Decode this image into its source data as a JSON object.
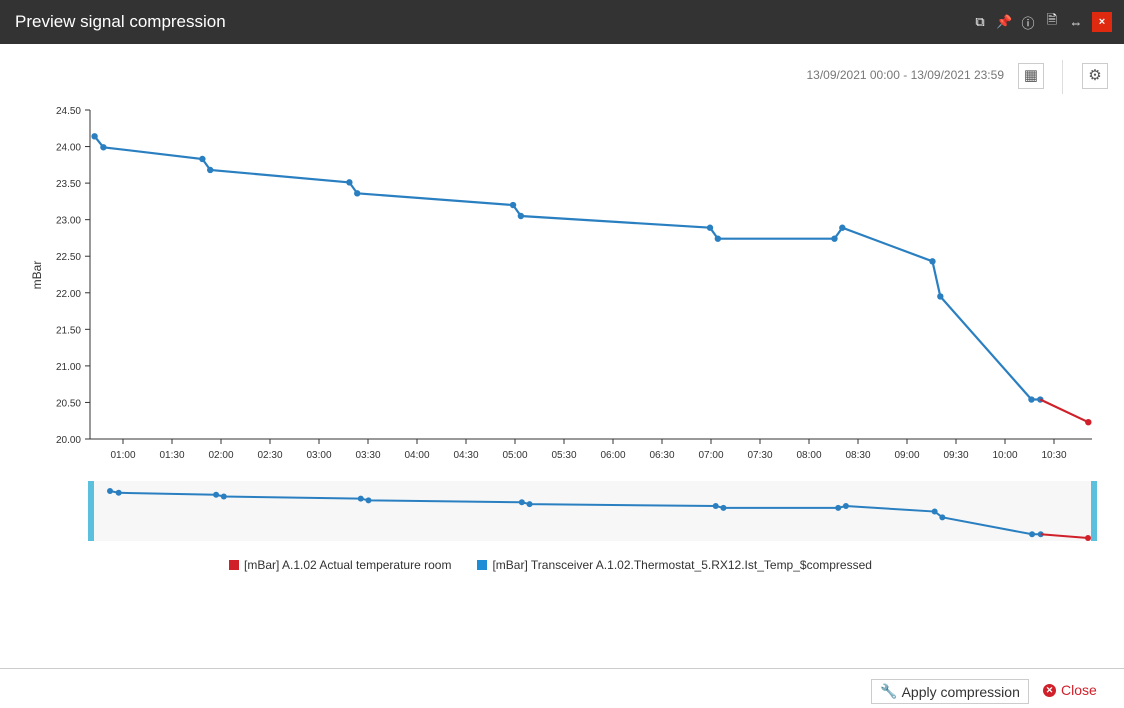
{
  "window": {
    "title": "Preview signal compression",
    "close_glyph": "×"
  },
  "toolbar": {
    "date_range": "13/09/2021 00:00 - 13/09/2021 23:59"
  },
  "chart_data": {
    "type": "line",
    "ylabel": "mBar",
    "ylim": [
      20.0,
      24.5
    ],
    "yticks": [
      "20.00",
      "20.50",
      "21.00",
      "21.50",
      "22.00",
      "22.50",
      "23.00",
      "23.50",
      "24.00",
      "24.50"
    ],
    "xticks": [
      "01:00",
      "01:30",
      "02:00",
      "02:30",
      "03:00",
      "03:30",
      "04:00",
      "04:30",
      "05:00",
      "05:30",
      "06:00",
      "06:30",
      "07:00",
      "07:30",
      "08:00",
      "08:30",
      "09:00",
      "09:30",
      "10:00",
      "10:30"
    ],
    "x_unit": "hours since 00:00",
    "series": [
      {
        "name": "[mBar] Transceiver A.1.02.Thermostat_5.RX12.Ist_Temp_$compressed",
        "color": "#2a7fc1",
        "x": [
          0.71,
          0.8,
          1.81,
          1.89,
          3.31,
          3.39,
          4.98,
          5.06,
          6.99,
          7.07,
          8.26,
          8.34,
          9.26,
          9.34,
          10.27,
          10.36
        ],
        "y": [
          24.14,
          23.99,
          23.83,
          23.68,
          23.51,
          23.36,
          23.2,
          23.05,
          22.89,
          22.74,
          22.74,
          22.89,
          22.43,
          21.95,
          20.54,
          20.54
        ]
      },
      {
        "name": "[mBar] A.1.02 Actual temperature room",
        "color": "#d0202a",
        "x": [
          10.36,
          10.85
        ],
        "y": [
          20.54,
          20.23
        ]
      }
    ],
    "legend": [
      {
        "label": "[mBar] A.1.02 Actual temperature room",
        "color": "#d0202a"
      },
      {
        "label": "[mBar] Transceiver A.1.02.Thermostat_5.RX12.Ist_Temp_$compressed",
        "color": "#1f8dd6"
      }
    ],
    "legend_position": "bottom"
  },
  "footer": {
    "apply_label": "Apply compression",
    "close_label": "Close"
  }
}
